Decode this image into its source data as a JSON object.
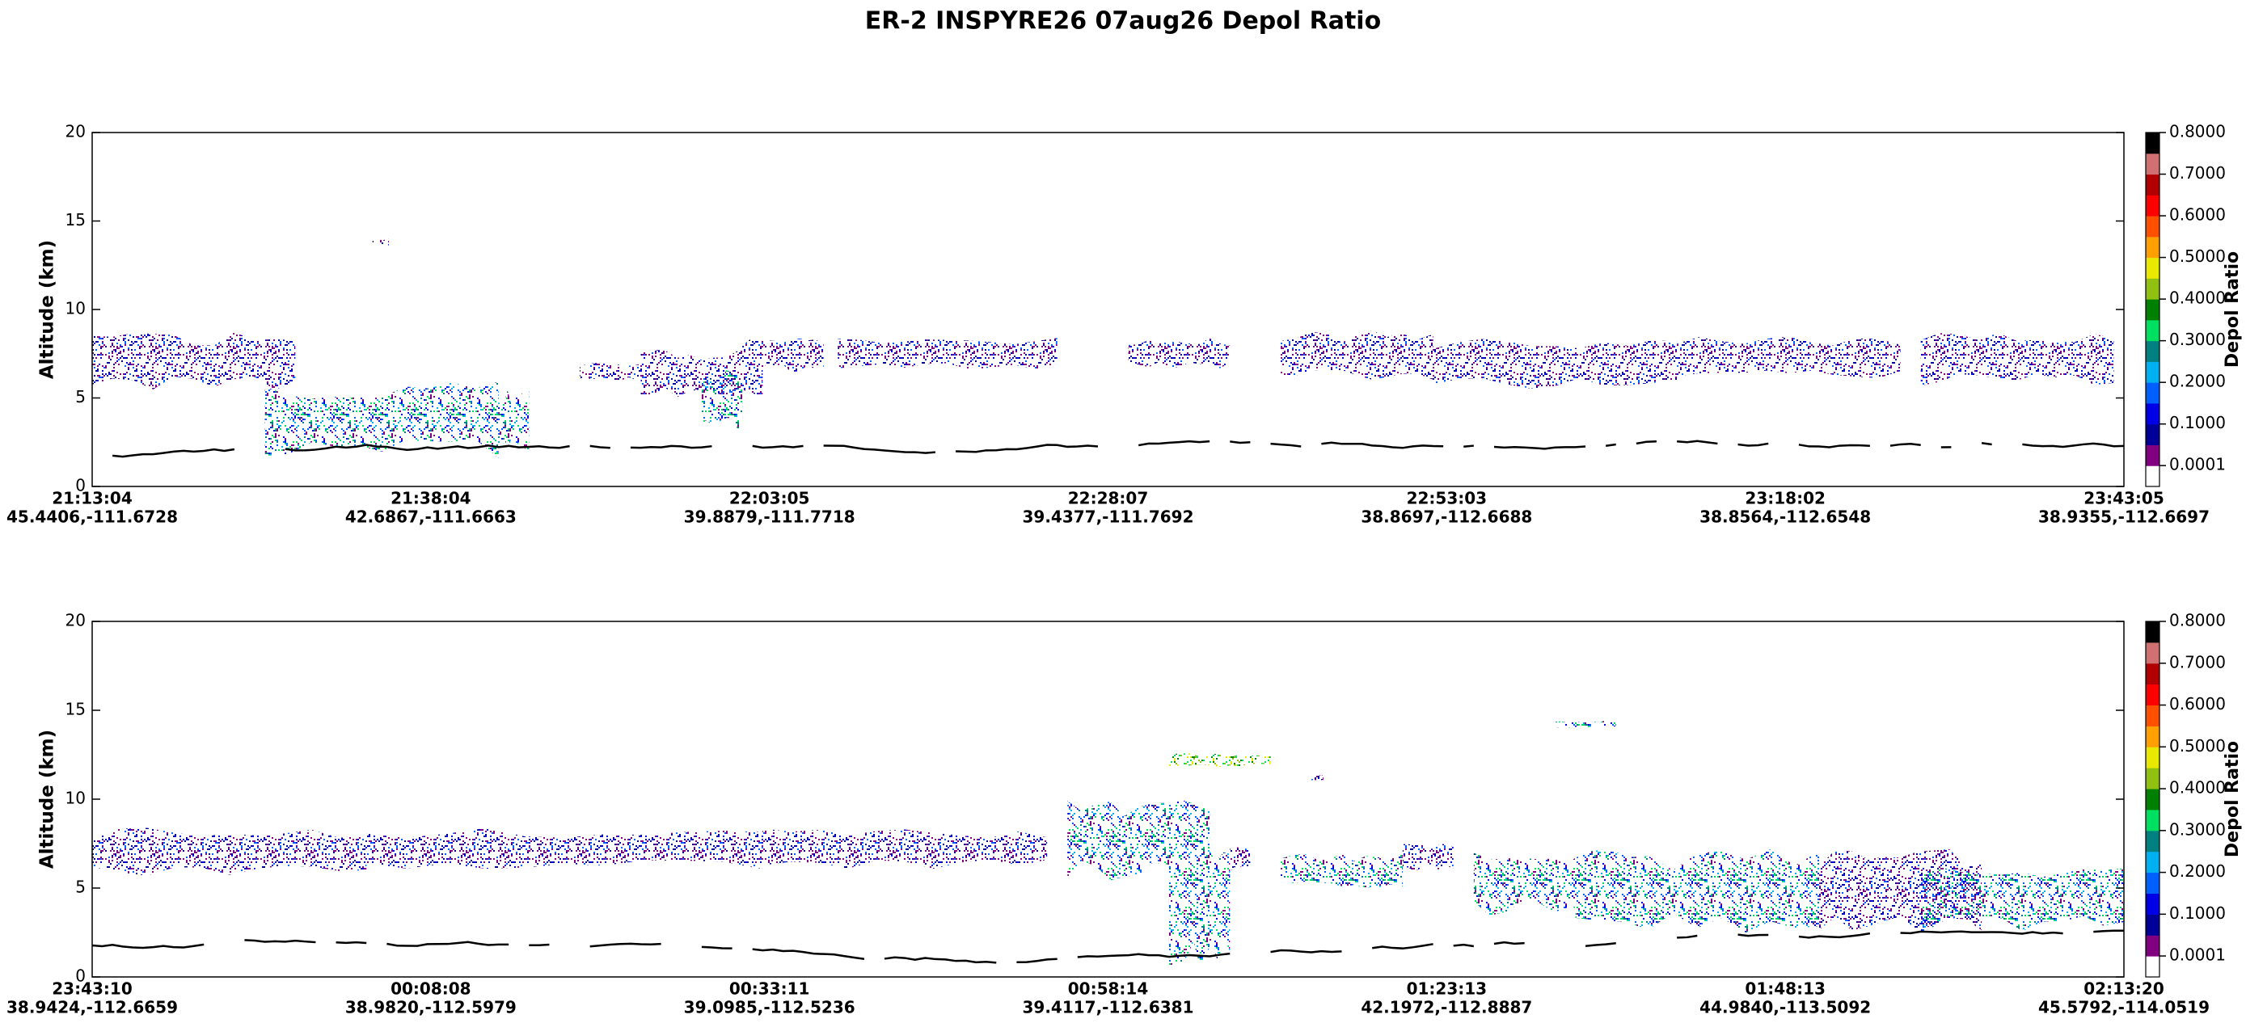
{
  "title": "ER-2  INSPYRE26  07aug26  Depol Ratio",
  "chart_data": [
    {
      "type": "curtain",
      "ylabel": "Altitude (km)",
      "ylim": [
        0,
        20
      ],
      "yticks": [
        0,
        5,
        10,
        15,
        20
      ],
      "x_time_labels": [
        "21:13:04",
        "21:38:04",
        "22:03:05",
        "22:28:07",
        "22:53:03",
        "23:18:02",
        "23:43:05"
      ],
      "x_latlon_labels": [
        "45.4406,-111.6728",
        "42.6867,-111.6663",
        "39.8879,-111.7718",
        "39.4377,-111.7692",
        "38.8697,-112.6688",
        "38.8564,-112.6548",
        "38.9355,-112.6697"
      ],
      "colorbar": {
        "label": "Depol Ratio",
        "clim": [
          -0.05,
          0.8
        ],
        "colors": [
          "#ffffff",
          "#800080",
          "#000099",
          "#0000e6",
          "#0060ff",
          "#00b0f0",
          "#008080",
          "#00e060",
          "#008000",
          "#90c010",
          "#e8e800",
          "#ffa000",
          "#ff5000",
          "#ff0000",
          "#b00000",
          "#d07070",
          "#000000"
        ],
        "ticks": [
          {
            "value": 0.0001,
            "label": "0.0001"
          },
          {
            "value": 0.1,
            "label": "0.1000"
          },
          {
            "value": 0.2,
            "label": "0.2000"
          },
          {
            "value": 0.3,
            "label": "0.3000"
          },
          {
            "value": 0.4,
            "label": "0.4000"
          },
          {
            "value": 0.5,
            "label": "0.5000"
          },
          {
            "value": 0.6,
            "label": "0.6000"
          },
          {
            "value": 0.7,
            "label": "0.7000"
          },
          {
            "value": 0.8,
            "label": "0.8000"
          }
        ]
      }
    },
    {
      "type": "curtain",
      "ylabel": "Altitude (km)",
      "ylim": [
        0,
        20
      ],
      "yticks": [
        0,
        5,
        10,
        15,
        20
      ],
      "x_time_labels": [
        "23:43:10",
        "00:08:08",
        "00:33:11",
        "00:58:14",
        "01:23:13",
        "01:48:13",
        "02:13:20"
      ],
      "x_latlon_labels": [
        "38.9424,-112.6659",
        "38.9820,-112.5979",
        "39.0985,-112.5236",
        "39.4117,-112.6381",
        "42.1972,-112.8887",
        "44.9840,-113.5092",
        "45.5792,-114.0519"
      ],
      "colorbar": {
        "label": "Depol Ratio",
        "clim": [
          -0.05,
          0.8
        ],
        "colors": [
          "#ffffff",
          "#800080",
          "#000099",
          "#0000e6",
          "#0060ff",
          "#00b0f0",
          "#008080",
          "#00e060",
          "#008000",
          "#90c010",
          "#e8e800",
          "#ffa000",
          "#ff5000",
          "#ff0000",
          "#b00000",
          "#d07070",
          "#000000"
        ],
        "ticks": [
          {
            "value": 0.0001,
            "label": "0.0001"
          },
          {
            "value": 0.1,
            "label": "0.1000"
          },
          {
            "value": 0.2,
            "label": "0.2000"
          },
          {
            "value": 0.3,
            "label": "0.3000"
          },
          {
            "value": 0.4,
            "label": "0.4000"
          },
          {
            "value": 0.5,
            "label": "0.5000"
          },
          {
            "value": 0.6,
            "label": "0.6000"
          },
          {
            "value": 0.7,
            "label": "0.7000"
          },
          {
            "value": 0.8,
            "label": "0.8000"
          }
        ]
      }
    }
  ]
}
